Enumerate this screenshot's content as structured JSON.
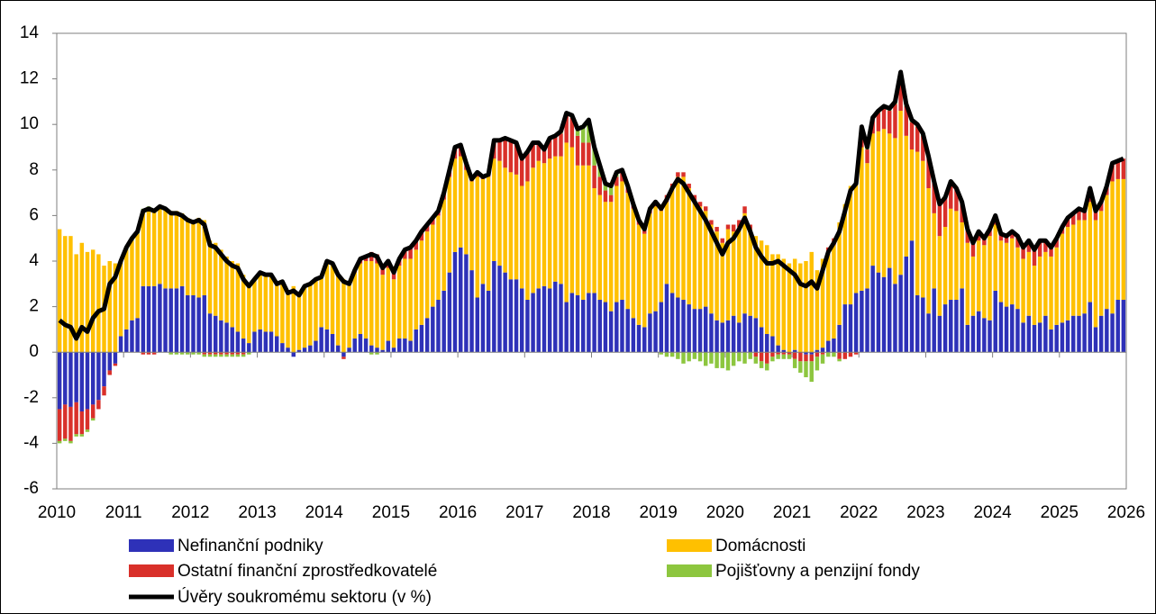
{
  "chart_data": {
    "type": "bar",
    "stacked": true,
    "xlim": [
      2010,
      2026
    ],
    "xticks": [
      2010,
      2011,
      2012,
      2013,
      2014,
      2015,
      2016,
      2017,
      2018,
      2019,
      2020,
      2021,
      2022,
      2023,
      2024,
      2025,
      2026
    ],
    "ylim": [
      -6,
      14
    ],
    "yticks": [
      -6,
      -4,
      -2,
      0,
      2,
      4,
      6,
      8,
      10,
      12,
      14
    ],
    "x": [
      2010.042,
      2010.125,
      2010.208,
      2010.292,
      2010.375,
      2010.458,
      2010.542,
      2010.625,
      2010.708,
      2010.792,
      2010.875,
      2010.958,
      2011.042,
      2011.125,
      2011.208,
      2011.292,
      2011.375,
      2011.458,
      2011.542,
      2011.625,
      2011.708,
      2011.792,
      2011.875,
      2011.958,
      2012.042,
      2012.125,
      2012.208,
      2012.292,
      2012.375,
      2012.458,
      2012.542,
      2012.625,
      2012.708,
      2012.792,
      2012.875,
      2012.958,
      2013.042,
      2013.125,
      2013.208,
      2013.292,
      2013.375,
      2013.458,
      2013.542,
      2013.625,
      2013.708,
      2013.792,
      2013.875,
      2013.958,
      2014.042,
      2014.125,
      2014.208,
      2014.292,
      2014.375,
      2014.458,
      2014.542,
      2014.625,
      2014.708,
      2014.792,
      2014.875,
      2014.958,
      2015.042,
      2015.125,
      2015.208,
      2015.292,
      2015.375,
      2015.458,
      2015.542,
      2015.625,
      2015.708,
      2015.792,
      2015.875,
      2015.958,
      2016.042,
      2016.125,
      2016.208,
      2016.292,
      2016.375,
      2016.458,
      2016.542,
      2016.625,
      2016.708,
      2016.792,
      2016.875,
      2016.958,
      2017.042,
      2017.125,
      2017.208,
      2017.292,
      2017.375,
      2017.458,
      2017.542,
      2017.625,
      2017.708,
      2017.792,
      2017.875,
      2017.958,
      2018.042,
      2018.125,
      2018.208,
      2018.292,
      2018.375,
      2018.458,
      2018.542,
      2018.625,
      2018.708,
      2018.792,
      2018.875,
      2018.958,
      2019.042,
      2019.125,
      2019.208,
      2019.292,
      2019.375,
      2019.458,
      2019.542,
      2019.625,
      2019.708,
      2019.792,
      2019.875,
      2019.958,
      2020.042,
      2020.125,
      2020.208,
      2020.292,
      2020.375,
      2020.458,
      2020.542,
      2020.625,
      2020.708,
      2020.792,
      2020.875,
      2020.958,
      2021.042,
      2021.125,
      2021.208,
      2021.292,
      2021.375,
      2021.458,
      2021.542,
      2021.625,
      2021.708,
      2021.792,
      2021.875,
      2021.958,
      2022.042,
      2022.125,
      2022.208,
      2022.292,
      2022.375,
      2022.458,
      2022.542,
      2022.625,
      2022.708,
      2022.792,
      2022.875,
      2022.958,
      2023.042,
      2023.125,
      2023.208,
      2023.292,
      2023.375,
      2023.458,
      2023.542,
      2023.625,
      2023.708,
      2023.792,
      2023.875,
      2023.958,
      2024.042,
      2024.125,
      2024.208,
      2024.292,
      2024.375,
      2024.458,
      2024.542,
      2024.625,
      2024.708,
      2024.792,
      2024.875,
      2024.958,
      2025.042,
      2025.125,
      2025.208,
      2025.292,
      2025.375,
      2025.458,
      2025.542,
      2025.625,
      2025.708,
      2025.792,
      2025.875,
      2025.958
    ],
    "series": [
      {
        "name": "Nefinanční podniky",
        "color": "#2e31b8",
        "values": [
          -2.5,
          -2.3,
          -2.4,
          -2.2,
          -2.6,
          -2.5,
          -2.3,
          -2.1,
          -1.5,
          -0.8,
          -0.5,
          0.7,
          1.0,
          1.4,
          1.5,
          2.9,
          2.9,
          2.9,
          3.0,
          2.8,
          2.8,
          2.8,
          2.9,
          2.5,
          2.5,
          2.4,
          2.5,
          1.7,
          1.6,
          1.4,
          1.3,
          1.1,
          0.9,
          0.6,
          0.4,
          0.9,
          1.0,
          0.9,
          0.9,
          0.7,
          0.4,
          0.2,
          -0.2,
          0.1,
          0.2,
          0.3,
          0.5,
          1.1,
          1.0,
          0.8,
          0.3,
          -0.2,
          0.2,
          0.6,
          0.8,
          0.6,
          0.3,
          0.2,
          0.1,
          0.5,
          0.2,
          0.6,
          0.6,
          0.5,
          1.0,
          1.2,
          1.5,
          2.0,
          2.3,
          2.7,
          3.5,
          4.4,
          4.6,
          4.3,
          3.6,
          2.4,
          3.0,
          2.7,
          4.0,
          3.8,
          3.5,
          3.2,
          3.2,
          2.8,
          2.3,
          2.6,
          2.8,
          2.9,
          2.8,
          3.1,
          3.0,
          2.2,
          2.6,
          2.5,
          2.3,
          2.6,
          2.6,
          2.3,
          2.2,
          1.8,
          2.2,
          2.3,
          1.9,
          1.5,
          1.2,
          1.1,
          1.7,
          1.8,
          2.2,
          3.0,
          2.6,
          2.4,
          2.3,
          2.1,
          1.9,
          1.9,
          2.0,
          1.7,
          1.4,
          1.3,
          1.4,
          1.6,
          1.3,
          1.7,
          1.6,
          1.5,
          1.1,
          0.8,
          0.7,
          0.3,
          0.1,
          0.0,
          0.1,
          0.0,
          -0.1,
          -0.1,
          0.1,
          0.2,
          0.5,
          0.6,
          1.2,
          2.1,
          2.1,
          2.6,
          2.7,
          2.8,
          3.8,
          3.5,
          3.3,
          3.7,
          3.0,
          3.4,
          4.2,
          4.9,
          2.5,
          2.4,
          1.7,
          2.8,
          1.6,
          2.1,
          2.3,
          2.3,
          2.8,
          1.2,
          1.6,
          1.8,
          1.5,
          1.4,
          2.7,
          2.2,
          2.0,
          2.1,
          1.9,
          1.3,
          1.6,
          1.2,
          1.3,
          1.6,
          1.0,
          1.2,
          1.3,
          1.4,
          1.6,
          1.6,
          1.7,
          2.2,
          1.1,
          1.6,
          1.9,
          1.7,
          2.3,
          2.3
        ]
      },
      {
        "name": "Domácnosti",
        "color": "#ffc000",
        "values": [
          5.4,
          5.1,
          5.1,
          4.3,
          4.8,
          4.4,
          4.5,
          4.3,
          3.8,
          4.0,
          3.9,
          3.3,
          3.5,
          3.5,
          3.7,
          3.3,
          3.4,
          3.3,
          3.4,
          3.5,
          3.4,
          3.4,
          3.2,
          3.4,
          3.3,
          3.5,
          3.3,
          3.2,
          3.2,
          3.1,
          2.9,
          2.9,
          3.0,
          2.8,
          2.6,
          2.3,
          2.5,
          2.5,
          2.5,
          2.3,
          2.7,
          2.4,
          2.9,
          2.4,
          2.7,
          2.7,
          2.7,
          2.2,
          3.0,
          3.1,
          3.1,
          3.2,
          2.8,
          2.9,
          3.1,
          3.4,
          3.7,
          3.7,
          3.3,
          3.2,
          3.0,
          3.2,
          3.5,
          3.6,
          3.5,
          3.7,
          3.8,
          3.6,
          3.7,
          4.0,
          4.2,
          4.1,
          4.0,
          3.7,
          3.9,
          5.3,
          4.6,
          5.0,
          4.5,
          4.6,
          4.6,
          4.7,
          4.6,
          4.5,
          5.2,
          5.5,
          5.6,
          5.4,
          5.7,
          5.5,
          5.6,
          7.0,
          6.4,
          5.7,
          5.9,
          5.6,
          4.6,
          4.6,
          4.4,
          4.8,
          5.1,
          5.2,
          5.1,
          4.8,
          4.4,
          4.1,
          4.4,
          4.6,
          4.0,
          3.6,
          4.6,
          5.3,
          5.4,
          5.1,
          4.7,
          4.5,
          4.2,
          3.9,
          3.9,
          3.5,
          4.0,
          3.7,
          4.2,
          4.4,
          3.8,
          3.6,
          3.8,
          3.9,
          3.6,
          4.0,
          4.0,
          3.9,
          4.0,
          3.9,
          4.0,
          4.4,
          3.5,
          3.9,
          3.9,
          4.1,
          4.5,
          4.4,
          5.2,
          4.8,
          6.3,
          5.5,
          5.8,
          6.2,
          6.5,
          5.9,
          6.4,
          7.2,
          5.3,
          4.0,
          6.3,
          6.0,
          5.5,
          3.3,
          3.5,
          3.4,
          4.0,
          3.9,
          2.9,
          3.6,
          2.6,
          3.1,
          3.2,
          3.7,
          2.9,
          2.7,
          2.8,
          2.9,
          2.7,
          2.8,
          2.8,
          2.6,
          2.9,
          2.8,
          3.2,
          3.4,
          3.9,
          4.1,
          4.0,
          4.2,
          4.1,
          4.4,
          4.7,
          4.6,
          5.0,
          5.8,
          5.3,
          5.3
        ]
      },
      {
        "name": "Ostatní finanční zprostředkovatelé",
        "color": "#d9302a",
        "values": [
          -1.4,
          -1.5,
          -1.5,
          -1.4,
          -1.0,
          -0.9,
          -0.6,
          -0.4,
          -0.4,
          -0.2,
          -0.1,
          0,
          0,
          0,
          0,
          -0.1,
          -0.1,
          -0.1,
          0,
          0,
          0,
          0,
          0,
          0,
          0,
          0,
          -0.1,
          -0.1,
          -0.1,
          -0.1,
          -0.1,
          -0.1,
          -0.1,
          -0.1,
          0,
          0,
          0,
          0,
          0,
          0,
          0,
          0,
          0,
          0,
          0,
          0,
          0,
          0,
          0,
          0,
          0,
          -0.1,
          0,
          0.1,
          0.2,
          0.2,
          0.4,
          0.4,
          0.3,
          0.3,
          0.3,
          0.3,
          0.4,
          0.5,
          0.4,
          0.4,
          0.3,
          0.3,
          0.2,
          0.3,
          0.3,
          0.5,
          0.5,
          0.3,
          0.1,
          0.2,
          0.1,
          0.1,
          0.8,
          0.9,
          1.3,
          1.4,
          1.4,
          1.2,
          1.3,
          1.1,
          0.8,
          0.6,
          0.9,
          0.9,
          1.0,
          1.2,
          1.3,
          1.3,
          1.0,
          1.0,
          1.0,
          0.8,
          0.5,
          0.3,
          0.4,
          0.4,
          0.3,
          0.2,
          0.2,
          0.2,
          0.2,
          0.2,
          0.2,
          0.3,
          0.2,
          0.2,
          0.2,
          0.2,
          0.3,
          0.2,
          0.2,
          0.2,
          0.2,
          0.2,
          0.2,
          0.3,
          0.3,
          0.3,
          0.2,
          -0.2,
          -0.4,
          -0.5,
          -0.2,
          -0.1,
          -0.1,
          -0.1,
          -0.3,
          -0.4,
          -0.3,
          -0.3,
          -0.2,
          -0.1,
          0.2,
          0.3,
          -0.3,
          -0.3,
          -0.2,
          -0.1,
          0.8,
          0.6,
          0.6,
          0.8,
          0.9,
          1.0,
          1.5,
          1.6,
          1.3,
          1.2,
          1.1,
          1.1,
          1.4,
          1.4,
          1.4,
          1.3,
          1.2,
          1.0,
          0.9,
          0.6,
          0.6,
          0.4,
          0.3,
          0.3,
          0.4,
          0.3,
          0.3,
          0.3,
          0.5,
          0.5,
          0.5,
          0.7,
          0.7,
          0.5,
          0.4,
          0.4,
          0.3,
          0.4,
          0.5,
          0.5,
          0.4,
          0.6,
          0.4,
          0.4,
          0.4,
          0.8,
          0.8,
          0.9
        ]
      },
      {
        "name": "Pojišťovny a penzijní fondy",
        "color": "#8dc63f",
        "values": [
          -0.1,
          -0.1,
          -0.1,
          -0.1,
          -0.1,
          -0.1,
          -0.1,
          0,
          0,
          0,
          0,
          0,
          0.1,
          0.1,
          0.1,
          0.1,
          0.1,
          0.1,
          0,
          0,
          -0.1,
          -0.1,
          -0.1,
          -0.1,
          -0.1,
          -0.1,
          -0.1,
          -0.1,
          -0.1,
          -0.1,
          -0.1,
          -0.1,
          -0.1,
          -0.1,
          -0.1,
          0,
          0,
          0,
          0,
          0,
          0,
          0,
          0,
          0,
          0,
          0,
          0,
          0,
          0,
          0,
          0,
          0,
          0,
          0,
          0,
          0,
          -0.1,
          -0.1,
          0,
          0,
          0,
          0,
          0,
          0,
          0,
          0,
          0,
          0,
          0,
          0,
          0,
          0,
          0,
          0,
          0,
          0,
          0,
          0,
          0,
          0,
          0,
          0,
          0,
          0,
          0,
          0,
          0,
          0,
          0,
          0,
          0.1,
          0.1,
          0.1,
          0.3,
          0.7,
          1.0,
          0.8,
          0.5,
          0.3,
          0.4,
          0.2,
          0.1,
          0,
          0,
          0,
          0,
          0,
          0,
          -0.1,
          -0.2,
          -0.2,
          -0.3,
          -0.5,
          -0.4,
          -0.3,
          -0.4,
          -0.6,
          -0.5,
          -0.7,
          -0.7,
          -0.8,
          -0.6,
          -0.4,
          -0.5,
          -0.3,
          -0.3,
          -0.3,
          -0.3,
          -0.2,
          -0.2,
          -0.2,
          -0.2,
          -0.4,
          -0.5,
          -0.7,
          -0.9,
          -0.6,
          -0.4,
          -0.2,
          -0.2,
          -0.1,
          0,
          0,
          0.1,
          0.1,
          0.1,
          0.1,
          0.1,
          0.1,
          0.1,
          0.1,
          0.1,
          0.1,
          0.1,
          0.1,
          0.1,
          0,
          0,
          0,
          0,
          0,
          0,
          0,
          0,
          0,
          0,
          0,
          0,
          0,
          0,
          0,
          0,
          0,
          0,
          0,
          0,
          0,
          0,
          0,
          0,
          0,
          0,
          0,
          0,
          0,
          0,
          0,
          0,
          0,
          0,
          0,
          0
        ]
      },
      {
        "name": "Úvěry soukromému sektoru (v %)",
        "color": "#000000",
        "type": "line",
        "values": [
          1.4,
          1.2,
          1.1,
          0.6,
          1.1,
          0.9,
          1.5,
          1.8,
          1.9,
          3.0,
          3.3,
          4.0,
          4.6,
          5.0,
          5.3,
          6.2,
          6.3,
          6.2,
          6.4,
          6.3,
          6.1,
          6.1,
          6.0,
          5.8,
          5.7,
          5.8,
          5.6,
          4.7,
          4.6,
          4.3,
          4.0,
          3.8,
          3.7,
          3.2,
          2.9,
          3.2,
          3.5,
          3.4,
          3.4,
          3.0,
          3.1,
          2.6,
          2.7,
          2.5,
          2.9,
          3.0,
          3.2,
          3.3,
          4.0,
          3.9,
          3.4,
          3.1,
          3.0,
          3.6,
          4.1,
          4.2,
          4.3,
          4.2,
          3.7,
          4.0,
          3.5,
          4.1,
          4.5,
          4.6,
          4.9,
          5.3,
          5.6,
          5.9,
          6.2,
          7.0,
          8.0,
          9.0,
          9.1,
          8.3,
          7.6,
          7.9,
          7.7,
          7.8,
          9.3,
          9.3,
          9.4,
          9.3,
          9.2,
          8.5,
          8.8,
          9.2,
          9.2,
          8.9,
          9.4,
          9.5,
          9.7,
          10.5,
          10.4,
          9.8,
          9.9,
          10.2,
          9.0,
          8.2,
          7.4,
          7.3,
          7.9,
          8.0,
          7.3,
          6.5,
          5.8,
          5.4,
          6.3,
          6.6,
          6.3,
          6.7,
          7.2,
          7.6,
          7.4,
          7.0,
          6.6,
          6.2,
          5.8,
          5.3,
          4.8,
          4.3,
          4.8,
          5.0,
          5.4,
          5.9,
          5.3,
          4.6,
          4.2,
          3.9,
          3.9,
          4.0,
          3.8,
          3.6,
          3.4,
          3.0,
          2.9,
          3.1,
          2.8,
          3.6,
          4.4,
          4.8,
          5.3,
          6.2,
          7.1,
          7.4,
          9.9,
          9.0,
          10.3,
          10.6,
          10.8,
          10.7,
          11.0,
          12.3,
          10.9,
          10.2,
          10.0,
          9.6,
          8.6,
          7.5,
          6.5,
          6.8,
          7.5,
          7.2,
          6.6,
          5.4,
          4.8,
          5.3,
          5.0,
          5.4,
          6.0,
          5.2,
          5.1,
          5.3,
          5.1,
          4.6,
          4.9,
          4.5,
          4.9,
          4.9,
          4.6,
          5.0,
          5.5,
          5.9,
          6.1,
          6.3,
          6.2,
          7.2,
          6.2,
          6.6,
          7.3,
          8.3,
          8.4,
          8.5
        ]
      }
    ]
  }
}
